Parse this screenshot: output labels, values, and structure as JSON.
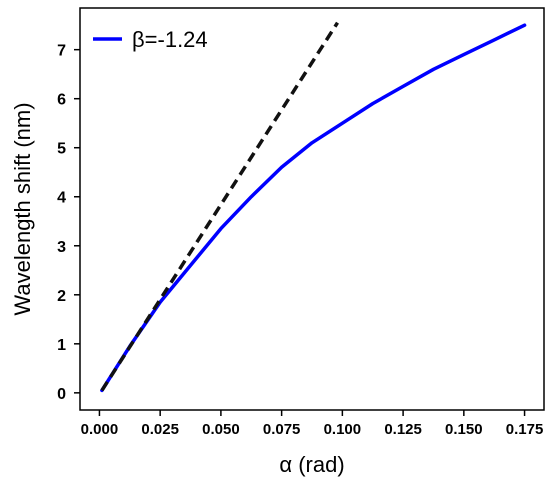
{
  "chart_data": {
    "type": "line",
    "title": "",
    "xlabel": "α (rad)",
    "ylabel": "Wavelength shift (nm)",
    "xlim": [
      -0.008,
      0.183
    ],
    "ylim": [
      -0.35,
      7.85
    ],
    "x_ticks": [
      0.0,
      0.025,
      0.05,
      0.075,
      0.1,
      0.125,
      0.15,
      0.175
    ],
    "x_tick_labels": [
      "0.000",
      "0.025",
      "0.050",
      "0.075",
      "0.100",
      "0.125",
      "0.150",
      "0.175"
    ],
    "y_ticks": [
      0,
      1,
      2,
      3,
      4,
      5,
      6,
      7
    ],
    "y_tick_labels": [
      "0",
      "1",
      "2",
      "3",
      "4",
      "5",
      "6",
      "7"
    ],
    "grid": false,
    "legend_placement": "top-left",
    "series": [
      {
        "name": "β=-1.24",
        "style": "solid",
        "color": "#0000ff",
        "x": [
          0.001,
          0.0125,
          0.025,
          0.0375,
          0.05,
          0.0625,
          0.075,
          0.0875,
          0.1,
          0.1125,
          0.125,
          0.1375,
          0.15,
          0.1625,
          0.175
        ],
        "y": [
          0.05,
          0.95,
          1.85,
          2.6,
          3.35,
          4.0,
          4.6,
          5.1,
          5.5,
          5.9,
          6.25,
          6.6,
          6.9,
          7.2,
          7.5
        ]
      },
      {
        "style": "dashed",
        "color": "#111111",
        "x": [
          0.001,
          0.098
        ],
        "y": [
          0.05,
          7.55
        ]
      }
    ]
  }
}
